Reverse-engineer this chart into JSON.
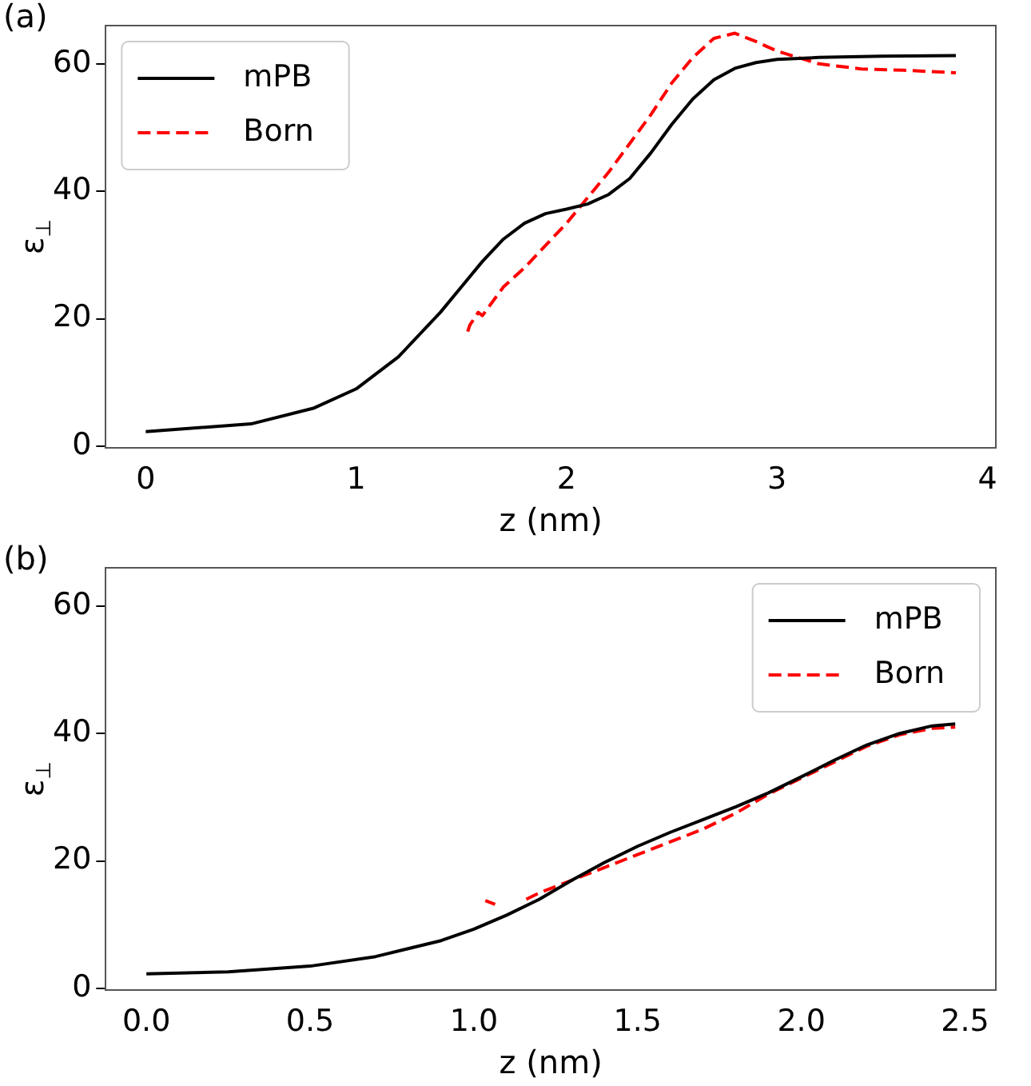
{
  "chart_data": [
    {
      "type": "line",
      "annotations": [
        "(a)"
      ],
      "xlabel": "z (nm)",
      "ylabel": "ε$_{⊥}$",
      "xlim": [
        -0.19,
        4.04
      ],
      "xticks": [
        0,
        1,
        2,
        3,
        4
      ],
      "ylim": [
        -0.3,
        66
      ],
      "yticks": [
        0,
        20,
        40,
        60
      ],
      "grid": false,
      "legend": "top left",
      "series": [
        {
          "name": "mPB",
          "color": "#000000",
          "line_style": "solid",
          "x": [
            0,
            0.5,
            0.8,
            1.0,
            1.2,
            1.4,
            1.5,
            1.6,
            1.7,
            1.8,
            1.9,
            2.0,
            2.1,
            2.2,
            2.3,
            2.4,
            2.5,
            2.6,
            2.7,
            2.8,
            2.9,
            3.0,
            3.2,
            3.5,
            3.85
          ],
          "values": [
            2.3,
            3.5,
            6,
            9,
            14,
            21,
            25,
            29,
            32.5,
            35,
            36.5,
            37.2,
            38,
            39.5,
            42,
            46,
            50.5,
            54.5,
            57.5,
            59.3,
            60.2,
            60.7,
            61,
            61.2,
            61.3
          ]
        },
        {
          "name": "Born",
          "color": "#ff0000",
          "line_style": "dashed",
          "x": [
            1.53,
            1.54,
            1.58,
            1.6,
            1.7,
            1.8,
            1.9,
            2.0,
            2.1,
            2.2,
            2.3,
            2.4,
            2.5,
            2.6,
            2.7,
            2.8,
            2.9,
            3.0,
            3.1,
            3.2,
            3.4,
            3.6,
            3.85
          ],
          "values": [
            18,
            19,
            21,
            20.5,
            25,
            28,
            31.5,
            35,
            39,
            43,
            47.5,
            52,
            57,
            61,
            64,
            64.8,
            63.5,
            62,
            61,
            60,
            59.2,
            59,
            58.6
          ]
        }
      ]
    },
    {
      "type": "line",
      "annotations": [
        "(b)"
      ],
      "xlabel": "z (nm)",
      "ylabel": "ε$_{⊥}$",
      "xlim": [
        -0.124,
        2.594
      ],
      "xticks": [
        {
          "value": 0,
          "label": "0.0"
        },
        0.5,
        {
          "value": 1,
          "label": "1.0"
        },
        1.5,
        {
          "value": 2,
          "label": "2.0"
        },
        2.5
      ],
      "ylim": [
        -0.3,
        66
      ],
      "yticks": [
        0,
        20,
        40,
        60
      ],
      "grid": false,
      "legend": "top right",
      "series": [
        {
          "name": "mPB",
          "color": "#000000",
          "line_style": "solid",
          "x": [
            0,
            0.25,
            0.5,
            0.7,
            0.9,
            1.0,
            1.1,
            1.2,
            1.3,
            1.4,
            1.5,
            1.6,
            1.7,
            1.8,
            1.9,
            2.0,
            2.1,
            2.2,
            2.3,
            2.4,
            2.47
          ],
          "values": [
            2.3,
            2.6,
            3.5,
            5,
            7.5,
            9.3,
            11.5,
            14,
            17,
            19.8,
            22.3,
            24.5,
            26.5,
            28.5,
            30.7,
            33.2,
            35.8,
            38.2,
            40,
            41.2,
            41.5
          ]
        },
        {
          "name": "Born",
          "color": "#ff0000",
          "line_style": "dashed",
          "x": [
            1.035,
            1.065,
            1.1,
            1.16,
            1.2,
            1.3,
            1.4,
            1.5,
            1.6,
            1.7,
            1.8,
            1.9,
            2.0,
            2.1,
            2.2,
            2.3,
            2.4,
            2.47
          ],
          "values": [
            13.8,
            13.2,
            null,
            14,
            15,
            17,
            19,
            21,
            23,
            25,
            27.5,
            30.5,
            33,
            35.5,
            38,
            39.8,
            40.8,
            41
          ]
        }
      ]
    }
  ]
}
